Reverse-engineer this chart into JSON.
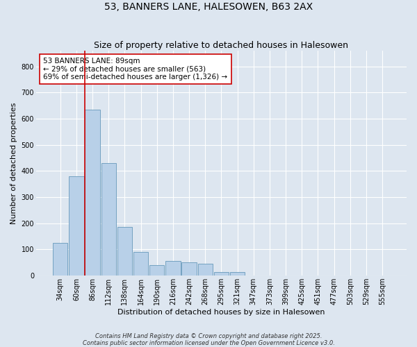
{
  "title": "53, BANNERS LANE, HALESOWEN, B63 2AX",
  "subtitle": "Size of property relative to detached houses in Halesowen",
  "xlabel": "Distribution of detached houses by size in Halesowen",
  "ylabel": "Number of detached properties",
  "footnote1": "Contains HM Land Registry data © Crown copyright and database right 2025.",
  "footnote2": "Contains public sector information licensed under the Open Government Licence v3.0.",
  "categories": [
    "34sqm",
    "60sqm",
    "86sqm",
    "112sqm",
    "138sqm",
    "164sqm",
    "190sqm",
    "216sqm",
    "242sqm",
    "268sqm",
    "295sqm",
    "321sqm",
    "347sqm",
    "373sqm",
    "399sqm",
    "425sqm",
    "451sqm",
    "477sqm",
    "503sqm",
    "529sqm",
    "555sqm"
  ],
  "values": [
    125,
    380,
    635,
    430,
    185,
    90,
    40,
    55,
    50,
    45,
    15,
    15,
    0,
    0,
    0,
    0,
    0,
    0,
    0,
    0,
    0
  ],
  "bar_color": "#b8d0e8",
  "bar_edge_color": "#6699bb",
  "background_color": "#dde6f0",
  "grid_color": "#ffffff",
  "vline_color": "#cc0000",
  "annotation_text": "53 BANNERS LANE: 89sqm\n← 29% of detached houses are smaller (563)\n69% of semi-detached houses are larger (1,326) →",
  "annotation_box_facecolor": "#ffffff",
  "annotation_box_edgecolor": "#cc0000",
  "ylim": [
    0,
    860
  ],
  "yticks": [
    0,
    100,
    200,
    300,
    400,
    500,
    600,
    700,
    800
  ],
  "title_fontsize": 10,
  "subtitle_fontsize": 9,
  "ylabel_fontsize": 8,
  "xlabel_fontsize": 8,
  "tick_fontsize": 7,
  "annot_fontsize": 7.5,
  "footnote_fontsize": 6
}
